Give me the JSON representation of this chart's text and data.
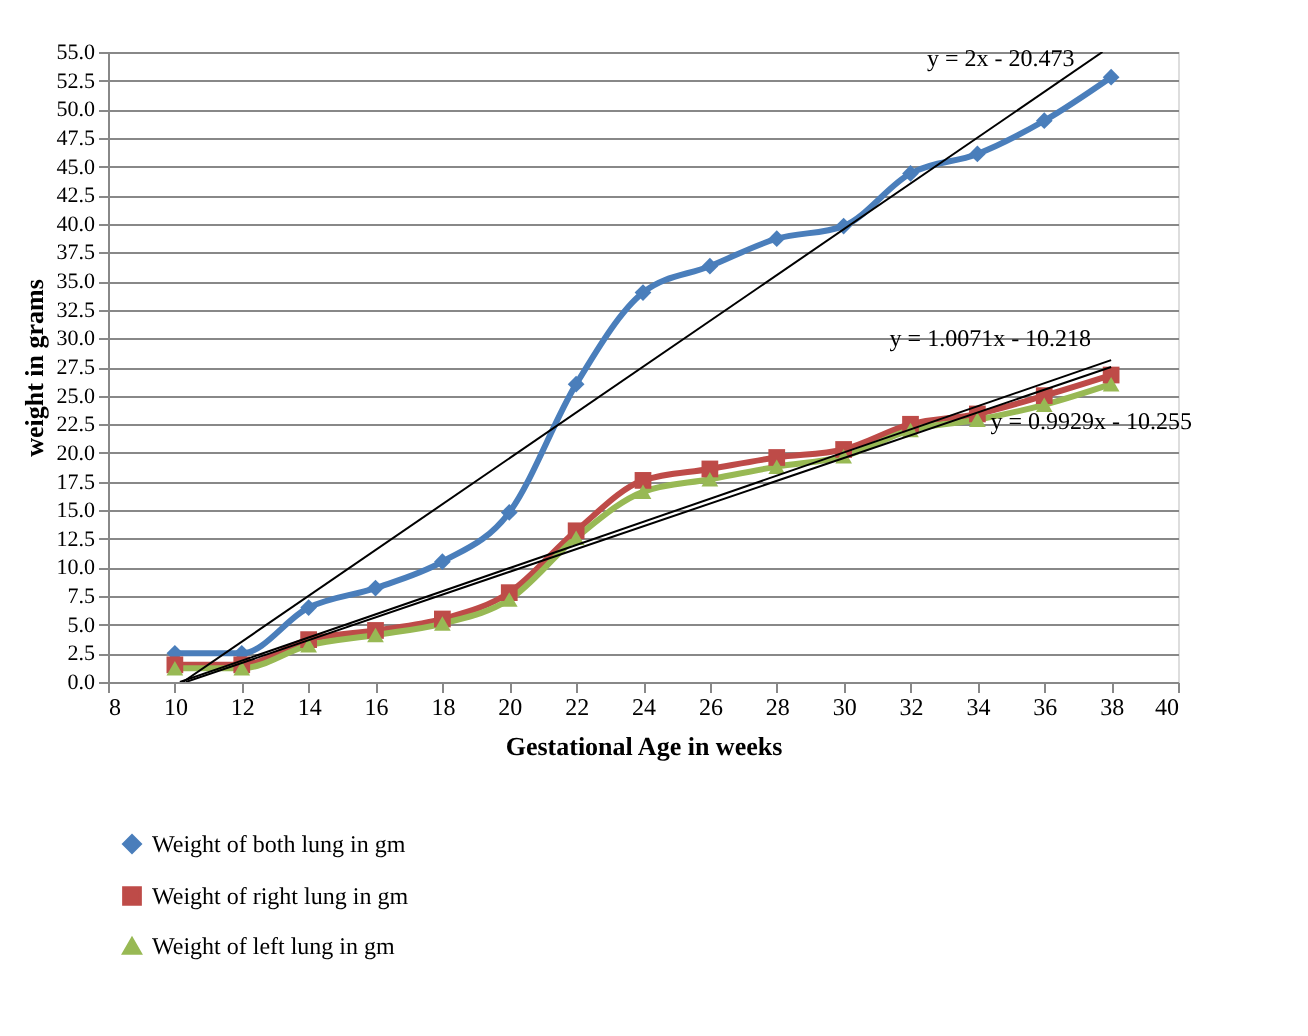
{
  "chart_data": {
    "type": "line",
    "xlabel": "Gestational Age in weeks",
    "ylabel": "weight in grams",
    "x": [
      10,
      12,
      14,
      16,
      18,
      20,
      22,
      24,
      26,
      28,
      30,
      32,
      34,
      36,
      38
    ],
    "series": [
      {
        "name": "Weight of both lung in  gm",
        "color": "#4a7ebb",
        "marker": "diamond",
        "values": [
          2.5,
          2.5,
          6.5,
          8.2,
          10.5,
          14.8,
          26.0,
          34.0,
          36.3,
          38.7,
          39.8,
          44.4,
          46.1,
          49.0,
          52.8
        ]
      },
      {
        "name": "Weight of right lung in gm",
        "color": "#be4b48",
        "marker": "square",
        "values": [
          1.5,
          1.5,
          3.7,
          4.5,
          5.5,
          7.8,
          13.2,
          17.6,
          18.6,
          19.6,
          20.3,
          22.5,
          23.4,
          25.0,
          26.8
        ]
      },
      {
        "name": "Weight of left lung in gm",
        "color": "#98b954",
        "marker": "triangle",
        "values": [
          1.2,
          1.2,
          3.2,
          4.1,
          5.1,
          7.2,
          12.6,
          16.6,
          17.7,
          18.8,
          19.7,
          22.0,
          22.9,
          24.2,
          26.0
        ]
      },
      {
        "type": "line",
        "color": "#000000",
        "marker": "none",
        "x": [
          10.24,
          37.74
        ],
        "values": [
          0,
          55
        ]
      },
      {
        "type": "line",
        "color": "#000000",
        "marker": "none",
        "x": [
          10.15,
          38
        ],
        "values": [
          0,
          28.1
        ]
      },
      {
        "type": "line",
        "color": "#000000",
        "marker": "none",
        "x": [
          10.33,
          38
        ],
        "values": [
          0,
          27.5
        ]
      }
    ],
    "xlim": [
      8,
      40
    ],
    "xticks": [
      8,
      10,
      12,
      14,
      16,
      18,
      20,
      22,
      24,
      26,
      28,
      30,
      32,
      34,
      36,
      38,
      40
    ],
    "ylim": [
      0,
      55
    ],
    "yticks": [
      {
        "value": 0,
        "label": "0.0"
      },
      {
        "value": 2.5,
        "label": "2.5"
      },
      {
        "value": 5,
        "label": "5.0"
      },
      {
        "value": 7.5,
        "label": "7.5"
      },
      {
        "value": 10,
        "label": "10.0"
      },
      {
        "value": 12.5,
        "label": "12.5"
      },
      {
        "value": 15,
        "label": "15.0"
      },
      {
        "value": 17.5,
        "label": "17.5"
      },
      {
        "value": 20,
        "label": "20.0"
      },
      {
        "value": 22.5,
        "label": "22.5"
      },
      {
        "value": 25,
        "label": "25.0"
      },
      {
        "value": 27.5,
        "label": "27.5"
      },
      {
        "value": 30,
        "label": "30.0"
      },
      {
        "value": 32.5,
        "label": "32.5"
      },
      {
        "value": 35,
        "label": "35.0"
      },
      {
        "value": 37.5,
        "label": "37.5"
      },
      {
        "value": 40,
        "label": "40.0"
      },
      {
        "value": 42.5,
        "label": "42.5"
      },
      {
        "value": 45,
        "label": "45.0"
      },
      {
        "value": 47.5,
        "label": "47.5"
      },
      {
        "value": 50,
        "label": "50.0"
      },
      {
        "value": 52.5,
        "label": "52.5"
      },
      {
        "value": 55,
        "label": "55.0"
      }
    ],
    "annotations": [
      "y = 2x - 20.473",
      "y = 1.0071x - 10.218",
      "y = 0.9929x - 10.255"
    ],
    "grid": "y",
    "legend": "bottom",
    "line_style": "solid"
  }
}
